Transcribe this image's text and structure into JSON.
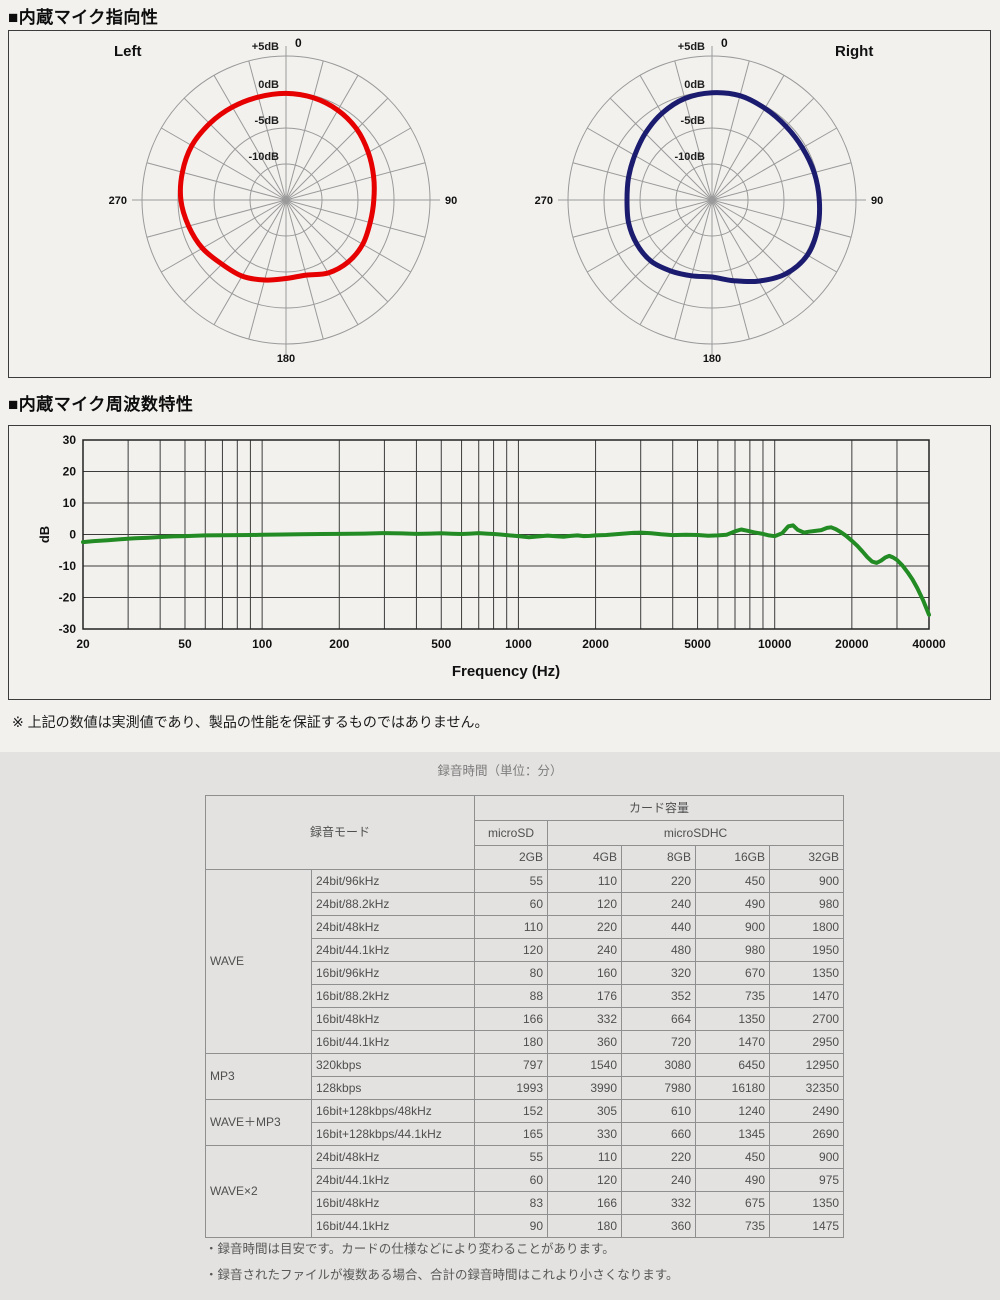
{
  "headings": {
    "polar_section": "■内蔵マイク指向性",
    "freq_section": "■内蔵マイク周波数特性"
  },
  "note": "※ 上記の数値は実測値であり、製品の性能を保証するものではありません。",
  "chart_data": [
    {
      "type": "polar",
      "title": "Left",
      "color": "#e60000",
      "grid_color": "#9a9a9a",
      "angle_step_deg": 15,
      "rings_db": [
        5,
        0,
        -5,
        -10
      ],
      "ring_labels": [
        "+5dB",
        "0dB",
        "-5dB",
        "-10dB"
      ],
      "angle_labels": [
        "0",
        "90",
        "180",
        "270"
      ],
      "center_db": -15,
      "values_db": [
        -0.2,
        -0.3,
        -0.6,
        -1.1,
        -1.8,
        -2.4,
        -2.8,
        -2.9,
        -2.7,
        -2.8,
        -3.3,
        -4.2,
        -4.1,
        -3.5,
        -2.8,
        -2.4,
        -1.6,
        -1.0,
        -0.4,
        -0.1,
        0.1,
        0.0,
        -0.1,
        -0.2
      ]
    },
    {
      "type": "polar",
      "title": "Right",
      "color": "#1b1b6f",
      "grid_color": "#9a9a9a",
      "angle_step_deg": 15,
      "rings_db": [
        5,
        0,
        -5,
        -10
      ],
      "ring_labels": [
        "+5dB",
        "0dB",
        "-5dB",
        "-10dB"
      ],
      "angle_labels": [
        "0",
        "90",
        "180",
        "270"
      ],
      "center_db": -15,
      "values_db": [
        -0.1,
        0.0,
        -0.3,
        -0.5,
        -0.5,
        -0.3,
        -0.1,
        0.2,
        0.3,
        -0.5,
        -2.0,
        -3.4,
        -4.3,
        -4.1,
        -3.6,
        -3.0,
        -2.9,
        -3.0,
        -3.2,
        -3.0,
        -2.6,
        -1.9,
        -1.1,
        -0.4
      ]
    },
    {
      "type": "line",
      "title": "内蔵マイク周波数特性",
      "xlabel": "Frequency (Hz)",
      "ylabel": "dB",
      "x_scale": "log",
      "xlim": [
        20,
        40000
      ],
      "ylim": [
        -30,
        30
      ],
      "x_ticks": [
        20,
        50,
        100,
        200,
        500,
        1000,
        2000,
        5000,
        10000,
        20000,
        40000
      ],
      "y_ticks": [
        30,
        20,
        10,
        0,
        -10,
        -20,
        -30
      ],
      "grid": true,
      "line_color": "#238b23",
      "points": [
        [
          20,
          -2.4
        ],
        [
          22,
          -2.1
        ],
        [
          25,
          -1.8
        ],
        [
          28,
          -1.5
        ],
        [
          32,
          -1.2
        ],
        [
          36,
          -1.0
        ],
        [
          40,
          -0.8
        ],
        [
          45,
          -0.6
        ],
        [
          50,
          -0.5
        ],
        [
          60,
          -0.3
        ],
        [
          70,
          -0.25
        ],
        [
          80,
          -0.2
        ],
        [
          90,
          -0.15
        ],
        [
          100,
          -0.1
        ],
        [
          120,
          0
        ],
        [
          140,
          0.1
        ],
        [
          170,
          0.15
        ],
        [
          200,
          0.2
        ],
        [
          250,
          0.3
        ],
        [
          300,
          0.45
        ],
        [
          350,
          0.35
        ],
        [
          400,
          0.2
        ],
        [
          450,
          0.3
        ],
        [
          500,
          0.4
        ],
        [
          550,
          0.25
        ],
        [
          600,
          0.15
        ],
        [
          650,
          0.3
        ],
        [
          700,
          0.45
        ],
        [
          750,
          0.3
        ],
        [
          800,
          0.15
        ],
        [
          850,
          0
        ],
        [
          900,
          -0.2
        ],
        [
          950,
          -0.35
        ],
        [
          1000,
          -0.5
        ],
        [
          1100,
          -0.9
        ],
        [
          1200,
          -0.6
        ],
        [
          1300,
          -0.35
        ],
        [
          1400,
          -0.55
        ],
        [
          1500,
          -0.7
        ],
        [
          1600,
          -0.45
        ],
        [
          1700,
          -0.3
        ],
        [
          1800,
          -0.5
        ],
        [
          1900,
          -0.45
        ],
        [
          2000,
          -0.3
        ],
        [
          2200,
          -0.15
        ],
        [
          2500,
          0.2
        ],
        [
          2800,
          0.5
        ],
        [
          3000,
          0.6
        ],
        [
          3300,
          0.4
        ],
        [
          3600,
          0.1
        ],
        [
          4000,
          -0.2
        ],
        [
          4500,
          -0.05
        ],
        [
          5000,
          -0.15
        ],
        [
          5500,
          -0.4
        ],
        [
          6000,
          -0.3
        ],
        [
          6500,
          -0.05
        ],
        [
          7000,
          1.0
        ],
        [
          7400,
          1.6
        ],
        [
          7800,
          1.2
        ],
        [
          8300,
          0.7
        ],
        [
          9000,
          0.2
        ],
        [
          9500,
          -0.3
        ],
        [
          10000,
          -0.55
        ],
        [
          10700,
          0.4
        ],
        [
          11300,
          2.6
        ],
        [
          11800,
          2.9
        ],
        [
          12300,
          1.5
        ],
        [
          13000,
          0.6
        ],
        [
          13600,
          0.9
        ],
        [
          14300,
          1.1
        ],
        [
          15200,
          1.4
        ],
        [
          16000,
          2.1
        ],
        [
          16600,
          2.3
        ],
        [
          17300,
          1.7
        ],
        [
          18000,
          0.9
        ],
        [
          19000,
          -0.4
        ],
        [
          20000,
          -2.0
        ],
        [
          21000,
          -3.6
        ],
        [
          22000,
          -5.4
        ],
        [
          23000,
          -7.2
        ],
        [
          24000,
          -8.6
        ],
        [
          25000,
          -9.0
        ],
        [
          26000,
          -8.3
        ],
        [
          27000,
          -7.3
        ],
        [
          28000,
          -6.8
        ],
        [
          29000,
          -7.3
        ],
        [
          30000,
          -8.1
        ],
        [
          31500,
          -9.8
        ],
        [
          33000,
          -12.0
        ],
        [
          34500,
          -14.3
        ],
        [
          36000,
          -17.0
        ],
        [
          38000,
          -21.0
        ],
        [
          40000,
          -25.5
        ]
      ]
    }
  ],
  "recording": {
    "caption": "録音時間（単位：分）",
    "table": {
      "header": {
        "mode_label": "録音モード",
        "capacity_label": "カード容量",
        "card_types": [
          "microSD",
          "microSDHC"
        ],
        "capacities": [
          "2GB",
          "4GB",
          "8GB",
          "16GB",
          "32GB"
        ]
      },
      "groups": [
        {
          "name": "WAVE",
          "rows": [
            {
              "mode": "24bit/96kHz",
              "values": [
                "55",
                "110",
                "220",
                "450",
                "900"
              ]
            },
            {
              "mode": "24bit/88.2kHz",
              "values": [
                "60",
                "120",
                "240",
                "490",
                "980"
              ]
            },
            {
              "mode": "24bit/48kHz",
              "values": [
                "110",
                "220",
                "440",
                "900",
                "1800"
              ]
            },
            {
              "mode": "24bit/44.1kHz",
              "values": [
                "120",
                "240",
                "480",
                "980",
                "1950"
              ]
            },
            {
              "mode": "16bit/96kHz",
              "values": [
                "80",
                "160",
                "320",
                "670",
                "1350"
              ]
            },
            {
              "mode": "16bit/88.2kHz",
              "values": [
                "88",
                "176",
                "352",
                "735",
                "1470"
              ]
            },
            {
              "mode": "16bit/48kHz",
              "values": [
                "166",
                "332",
                "664",
                "1350",
                "2700"
              ]
            },
            {
              "mode": "16bit/44.1kHz",
              "values": [
                "180",
                "360",
                "720",
                "1470",
                "2950"
              ]
            }
          ]
        },
        {
          "name": "MP3",
          "rows": [
            {
              "mode": "320kbps",
              "values": [
                "797",
                "1540",
                "3080",
                "6450",
                "12950"
              ]
            },
            {
              "mode": "128kbps",
              "values": [
                "1993",
                "3990",
                "7980",
                "16180",
                "32350"
              ]
            }
          ]
        },
        {
          "name": "WAVE＋MP3",
          "rows": [
            {
              "mode": "16bit+128kbps/48kHz",
              "values": [
                "152",
                "305",
                "610",
                "1240",
                "2490"
              ]
            },
            {
              "mode": "16bit+128kbps/44.1kHz",
              "values": [
                "165",
                "330",
                "660",
                "1345",
                "2690"
              ]
            }
          ]
        },
        {
          "name": "WAVE×2",
          "rows": [
            {
              "mode": "24bit/48kHz",
              "values": [
                "55",
                "110",
                "220",
                "450",
                "900"
              ]
            },
            {
              "mode": "24bit/44.1kHz",
              "values": [
                "60",
                "120",
                "240",
                "490",
                "975"
              ]
            },
            {
              "mode": "16bit/48kHz",
              "values": [
                "83",
                "166",
                "332",
                "675",
                "1350"
              ]
            },
            {
              "mode": "16bit/44.1kHz",
              "values": [
                "90",
                "180",
                "360",
                "735",
                "1475"
              ]
            }
          ]
        }
      ]
    },
    "footnotes": [
      "・録音時間は目安です。カードの仕様などにより変わることがあります。",
      "・録音されたファイルが複数ある場合、合計の録音時間はこれより小さくなります。"
    ]
  }
}
